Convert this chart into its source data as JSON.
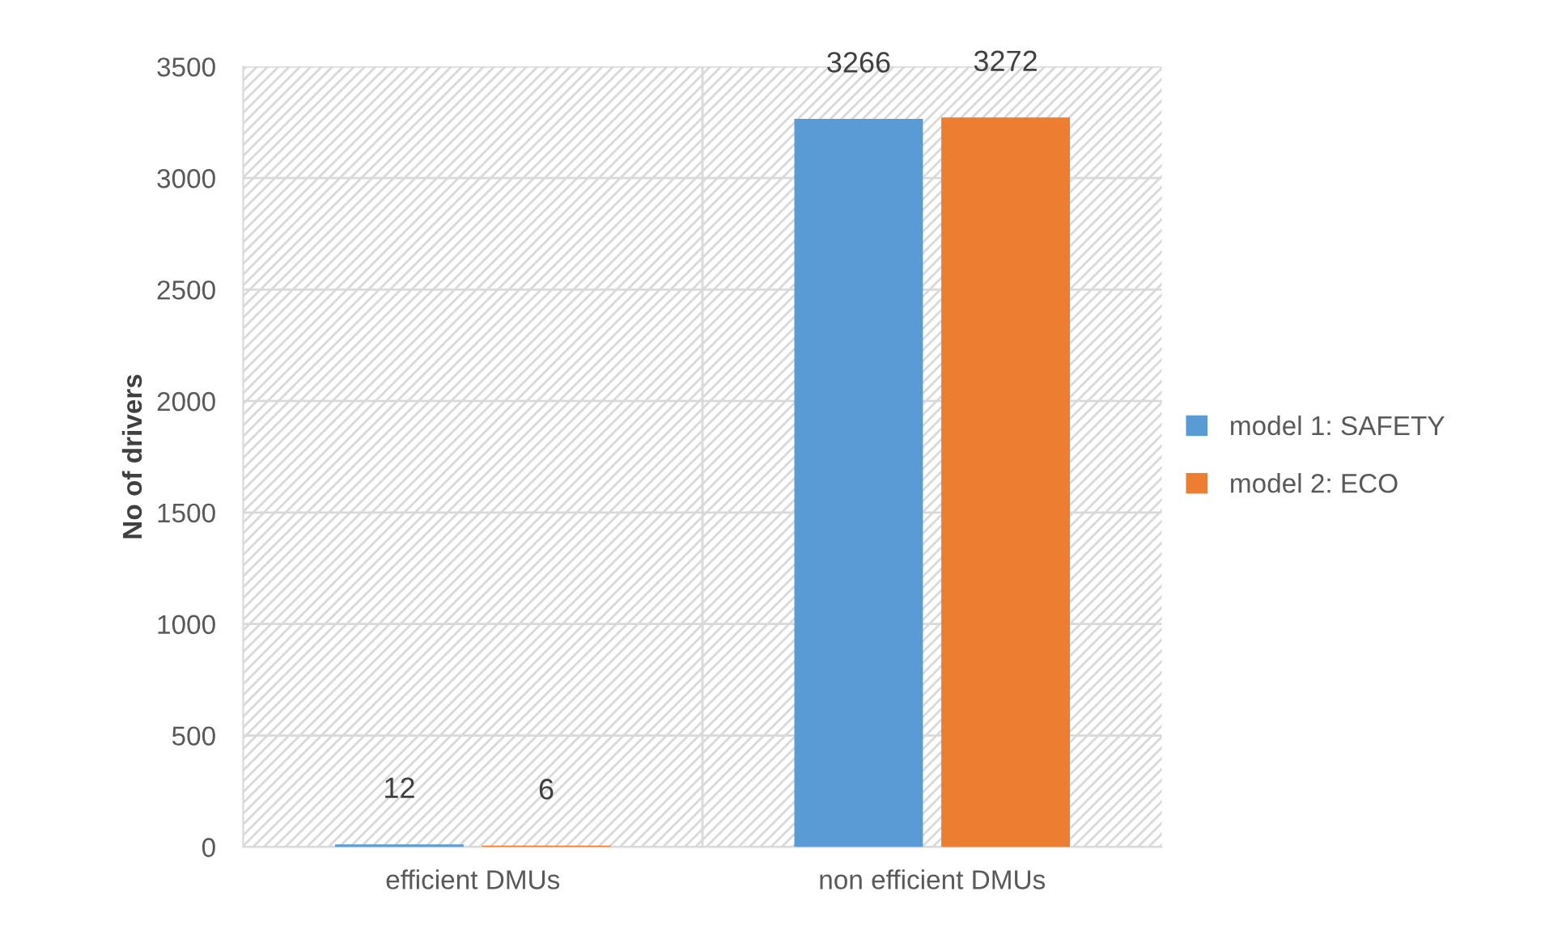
{
  "chart_data": {
    "type": "bar",
    "ylabel": "No of drivers",
    "categories": [
      "efficient DMUs",
      "non efficient DMUs"
    ],
    "series": [
      {
        "name": "model 1: SAFETY",
        "color": "#5b9bd5",
        "values": [
          12,
          3266
        ]
      },
      {
        "name": "model 2: ECO",
        "color": "#ed7d31",
        "values": [
          6,
          3272
        ]
      }
    ],
    "ylim": [
      0,
      3500
    ],
    "yticks": [
      0,
      500,
      1000,
      1500,
      2000,
      2500,
      3000,
      3500
    ],
    "grid": true,
    "legend": "right",
    "data_labels": true
  }
}
